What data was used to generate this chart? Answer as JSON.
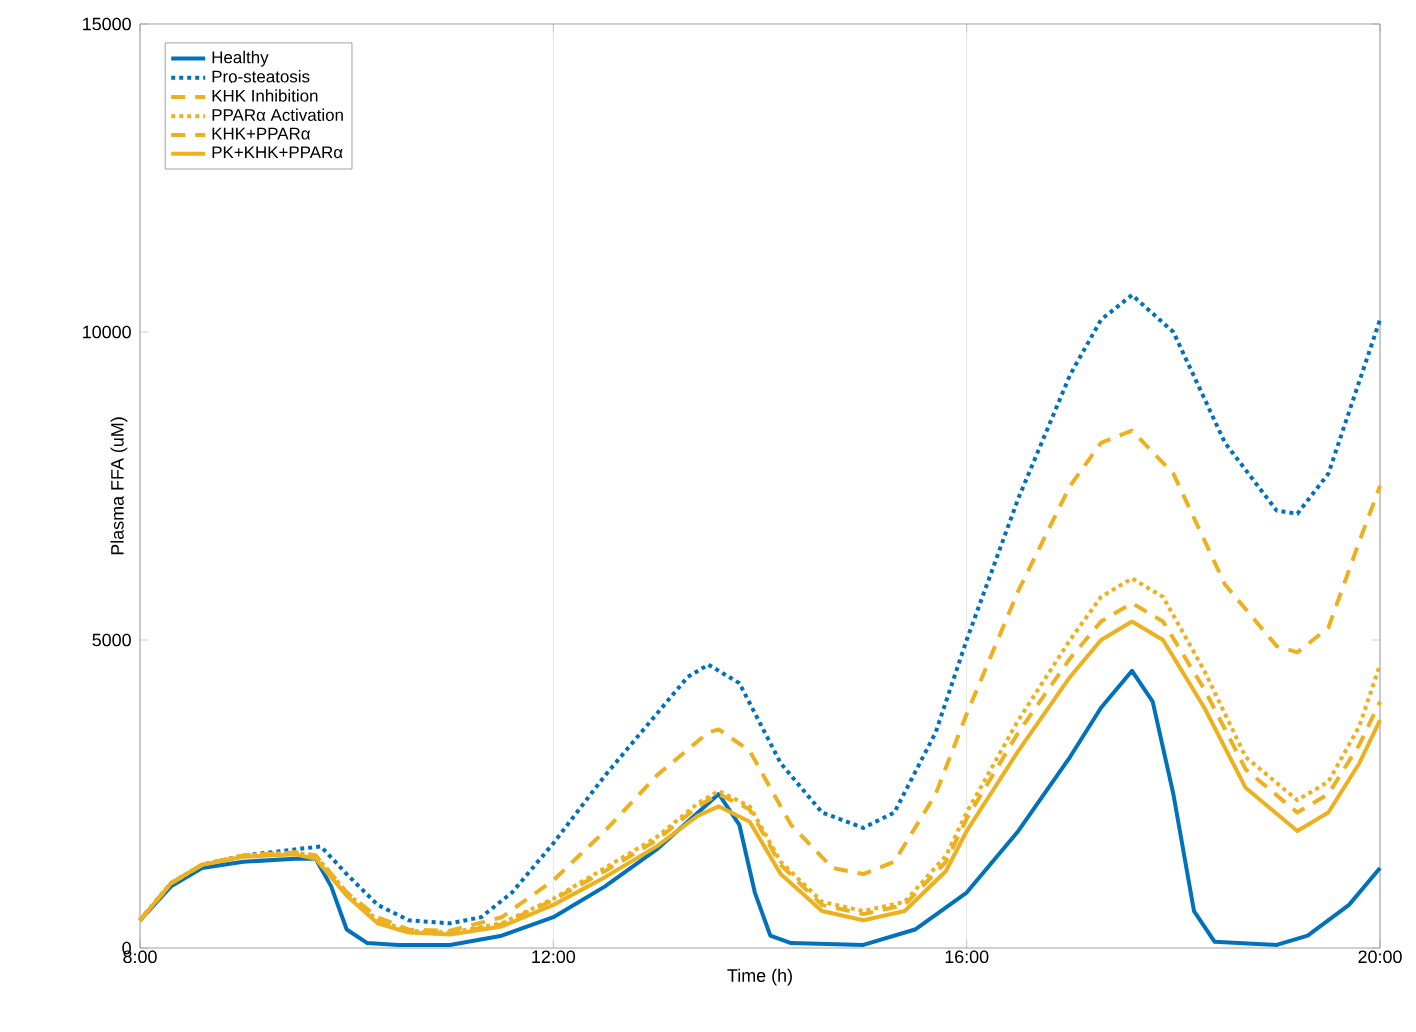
{
  "chart_data": {
    "type": "line",
    "xlabel": "Time (h)",
    "ylabel": "Plasma FFA (uM)",
    "xlim": [
      8,
      20
    ],
    "xticks": [
      {
        "value": 8,
        "label": "8:00"
      },
      {
        "value": 12,
        "label": "12:00"
      },
      {
        "value": 16,
        "label": "16:00"
      },
      {
        "value": 20,
        "label": "20:00"
      }
    ],
    "ylim": [
      0,
      15000
    ],
    "yticks": [
      0,
      5000,
      10000,
      15000
    ],
    "grid": "x",
    "legend": "top left",
    "series": [
      {
        "name": "Healthy",
        "color": "#0072bd",
        "line_style": "solid",
        "x": [
          8,
          8.3,
          8.6,
          9,
          9.5,
          9.7,
          9.85,
          10,
          10.2,
          10.5,
          11,
          11.5,
          12,
          12.5,
          13,
          13.4,
          13.6,
          13.8,
          13.95,
          14.1,
          14.3,
          15,
          15.5,
          16,
          16.5,
          17,
          17.3,
          17.6,
          17.8,
          18,
          18.2,
          18.4,
          19,
          19.3,
          19.7,
          20
        ],
        "values": [
          450,
          1000,
          1300,
          1400,
          1450,
          1450,
          1000,
          300,
          80,
          50,
          50,
          200,
          500,
          1000,
          1600,
          2200,
          2500,
          2000,
          900,
          200,
          80,
          50,
          300,
          900,
          1900,
          3100,
          3900,
          4500,
          4000,
          2500,
          600,
          100,
          50,
          200,
          700,
          1300
        ]
      },
      {
        "name": "Pro-steatosis",
        "color": "#0072bd",
        "line_style": "dotted",
        "x": [
          8,
          8.3,
          8.6,
          9,
          9.5,
          9.75,
          10,
          10.3,
          10.6,
          11,
          11.3,
          11.6,
          12,
          12.5,
          13,
          13.3,
          13.5,
          13.8,
          14.2,
          14.6,
          15,
          15.3,
          15.7,
          16,
          16.5,
          17,
          17.3,
          17.6,
          18,
          18.5,
          19,
          19.2,
          19.5,
          19.8,
          20
        ],
        "values": [
          450,
          1050,
          1350,
          1500,
          1600,
          1650,
          1200,
          700,
          450,
          400,
          500,
          900,
          1700,
          2800,
          3800,
          4400,
          4600,
          4300,
          3000,
          2200,
          1950,
          2200,
          3500,
          5000,
          7300,
          9300,
          10200,
          10600,
          10000,
          8200,
          7100,
          7050,
          7700,
          9200,
          10200
        ]
      },
      {
        "name": "KHK Inhibition",
        "color": "#edb120",
        "line_style": "dashed",
        "x": [
          8,
          8.3,
          8.6,
          9,
          9.5,
          9.7,
          10,
          10.3,
          10.6,
          11,
          11.5,
          12,
          12.5,
          13,
          13.5,
          13.6,
          13.9,
          14.3,
          14.7,
          15,
          15.3,
          15.7,
          16,
          16.5,
          17,
          17.3,
          17.6,
          18,
          18.5,
          19,
          19.2,
          19.5,
          19.8,
          20
        ],
        "values": [
          450,
          1050,
          1350,
          1500,
          1550,
          1500,
          900,
          500,
          300,
          280,
          500,
          1100,
          1900,
          2800,
          3500,
          3550,
          3200,
          2000,
          1300,
          1200,
          1400,
          2500,
          3800,
          5800,
          7500,
          8200,
          8400,
          7700,
          5900,
          4900,
          4800,
          5200,
          6600,
          7500
        ]
      },
      {
        "name": "PPARα Activation",
        "color": "#edb120",
        "line_style": "dotted",
        "x": [
          8,
          8.3,
          8.6,
          9,
          9.5,
          9.7,
          10,
          10.3,
          10.6,
          11,
          11.5,
          12,
          12.5,
          13,
          13.4,
          13.6,
          13.9,
          14.2,
          14.6,
          15,
          15.4,
          15.8,
          16,
          16.5,
          17,
          17.3,
          17.6,
          17.9,
          18.3,
          18.7,
          19.2,
          19.5,
          19.8,
          20
        ],
        "values": [
          450,
          1050,
          1350,
          1500,
          1550,
          1500,
          900,
          450,
          280,
          250,
          400,
          800,
          1300,
          1800,
          2350,
          2550,
          2300,
          1400,
          750,
          600,
          750,
          1500,
          2200,
          3700,
          5000,
          5700,
          6000,
          5700,
          4500,
          3100,
          2400,
          2700,
          3600,
          4600
        ]
      },
      {
        "name": "KHK+PPARα",
        "color": "#edb120",
        "line_style": "dashed",
        "x": [
          8,
          8.3,
          8.6,
          9,
          9.5,
          9.7,
          10,
          10.3,
          10.6,
          11,
          11.5,
          12,
          12.5,
          13,
          13.4,
          13.6,
          13.9,
          14.2,
          14.6,
          15,
          15.4,
          15.8,
          16,
          16.5,
          17,
          17.3,
          17.6,
          17.9,
          18.3,
          18.7,
          19.2,
          19.5,
          19.8,
          20
        ],
        "values": [
          450,
          1050,
          1350,
          1500,
          1550,
          1500,
          900,
          450,
          270,
          240,
          380,
          780,
          1250,
          1750,
          2300,
          2500,
          2250,
          1350,
          700,
          550,
          700,
          1400,
          2100,
          3500,
          4700,
          5300,
          5600,
          5300,
          4200,
          2900,
          2200,
          2500,
          3300,
          4000
        ]
      },
      {
        "name": "PK+KHK+PPARα",
        "color": "#edb120",
        "line_style": "solid",
        "x": [
          8,
          8.3,
          8.6,
          9,
          9.5,
          9.7,
          10,
          10.3,
          10.6,
          11,
          11.5,
          12,
          12.5,
          13,
          13.4,
          13.6,
          13.9,
          14.2,
          14.6,
          15,
          15.4,
          15.8,
          16,
          16.5,
          17,
          17.3,
          17.6,
          17.9,
          18.3,
          18.7,
          19.2,
          19.5,
          19.8,
          20
        ],
        "values": [
          450,
          1050,
          1350,
          1480,
          1520,
          1450,
          850,
          400,
          250,
          220,
          350,
          700,
          1150,
          1650,
          2150,
          2300,
          2050,
          1200,
          600,
          450,
          600,
          1250,
          1900,
          3200,
          4400,
          5000,
          5300,
          5000,
          3900,
          2600,
          1900,
          2200,
          3000,
          3700
        ]
      }
    ]
  }
}
